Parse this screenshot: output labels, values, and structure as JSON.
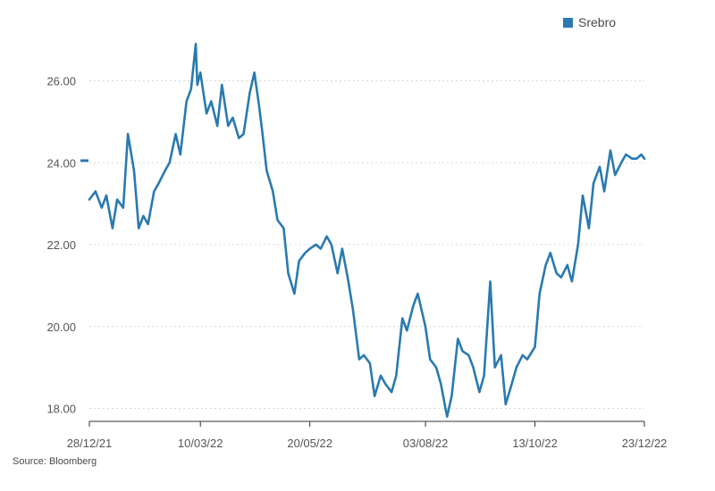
{
  "legend": {
    "label": "Srebro"
  },
  "source": "Source: Bloomberg",
  "colors": {
    "series": "#2a7ab0",
    "grid": "#d8d8d8",
    "axis": "#333333"
  },
  "chart_data": {
    "type": "line",
    "title": "",
    "xlabel": "",
    "ylabel": "",
    "ylim": [
      17.7,
      27.0
    ],
    "yticks": [
      18,
      20,
      22,
      24,
      26
    ],
    "ytick_labels": [
      "18.00",
      "20.00",
      "22.00",
      "24.00",
      "26.00"
    ],
    "xlim": [
      "2021-12-28",
      "2022-12-23"
    ],
    "xticks": [
      "2021-12-28",
      "2022-03-10",
      "2022-05-20",
      "2022-08-03",
      "2022-10-13",
      "2022-12-23"
    ],
    "xtick_labels": [
      "28/12/21",
      "10/03/22",
      "20/05/22",
      "03/08/22",
      "13/10/22",
      "23/12/22"
    ],
    "grid": true,
    "legend_position": "top-right",
    "current_value_marker": 24.05,
    "series": [
      {
        "name": "Srebro",
        "x": [
          "2021-12-28",
          "2022-01-01",
          "2022-01-05",
          "2022-01-08",
          "2022-01-12",
          "2022-01-15",
          "2022-01-19",
          "2022-01-22",
          "2022-01-26",
          "2022-01-29",
          "2022-02-01",
          "2022-02-04",
          "2022-02-08",
          "2022-02-11",
          "2022-02-15",
          "2022-02-18",
          "2022-02-22",
          "2022-02-25",
          "2022-03-01",
          "2022-03-04",
          "2022-03-07",
          "2022-03-08",
          "2022-03-10",
          "2022-03-14",
          "2022-03-17",
          "2022-03-21",
          "2022-03-24",
          "2022-03-28",
          "2022-03-31",
          "2022-04-04",
          "2022-04-07",
          "2022-04-11",
          "2022-04-14",
          "2022-04-17",
          "2022-04-19",
          "2022-04-22",
          "2022-04-26",
          "2022-04-29",
          "2022-05-03",
          "2022-05-06",
          "2022-05-10",
          "2022-05-13",
          "2022-05-17",
          "2022-05-20",
          "2022-05-24",
          "2022-05-27",
          "2022-05-31",
          "2022-06-03",
          "2022-06-07",
          "2022-06-10",
          "2022-06-14",
          "2022-06-17",
          "2022-06-21",
          "2022-06-24",
          "2022-06-28",
          "2022-07-01",
          "2022-07-05",
          "2022-07-08",
          "2022-07-12",
          "2022-07-15",
          "2022-07-19",
          "2022-07-22",
          "2022-07-26",
          "2022-07-29",
          "2022-08-03",
          "2022-08-06",
          "2022-08-10",
          "2022-08-13",
          "2022-08-17",
          "2022-08-20",
          "2022-08-24",
          "2022-08-27",
          "2022-08-31",
          "2022-09-03",
          "2022-09-07",
          "2022-09-10",
          "2022-09-14",
          "2022-09-17",
          "2022-09-21",
          "2022-09-24",
          "2022-09-28",
          "2022-10-01",
          "2022-10-05",
          "2022-10-08",
          "2022-10-13",
          "2022-10-16",
          "2022-10-20",
          "2022-10-23",
          "2022-10-27",
          "2022-10-30",
          "2022-11-03",
          "2022-11-06",
          "2022-11-10",
          "2022-11-13",
          "2022-11-17",
          "2022-11-20",
          "2022-11-24",
          "2022-11-27",
          "2022-12-01",
          "2022-12-04",
          "2022-12-08",
          "2022-12-11",
          "2022-12-15",
          "2022-12-18",
          "2022-12-21",
          "2022-12-23"
        ],
        "y": [
          23.1,
          23.3,
          22.9,
          23.2,
          22.4,
          23.1,
          22.9,
          24.7,
          23.8,
          22.4,
          22.7,
          22.5,
          23.3,
          23.5,
          23.8,
          24.0,
          24.7,
          24.2,
          25.5,
          25.8,
          26.9,
          25.9,
          26.2,
          25.2,
          25.5,
          24.9,
          25.9,
          24.9,
          25.1,
          24.6,
          24.7,
          25.7,
          26.2,
          25.4,
          24.8,
          23.8,
          23.3,
          22.6,
          22.4,
          21.3,
          20.8,
          21.6,
          21.8,
          21.9,
          22.0,
          21.9,
          22.2,
          22.0,
          21.3,
          21.9,
          21.1,
          20.4,
          19.2,
          19.3,
          19.1,
          18.3,
          18.8,
          18.6,
          18.4,
          18.8,
          20.2,
          19.9,
          20.5,
          20.8,
          20.0,
          19.2,
          19.0,
          18.6,
          17.8,
          18.3,
          19.7,
          19.4,
          19.3,
          19.0,
          18.4,
          18.8,
          21.1,
          19.0,
          19.3,
          18.1,
          18.6,
          19.0,
          19.3,
          19.2,
          19.5,
          20.8,
          21.5,
          21.8,
          21.3,
          21.2,
          21.5,
          21.1,
          22.0,
          23.2,
          22.4,
          23.5,
          23.9,
          23.3,
          24.3,
          23.7,
          24.0,
          24.2,
          24.1,
          24.1,
          24.2,
          24.1
        ]
      }
    ]
  }
}
